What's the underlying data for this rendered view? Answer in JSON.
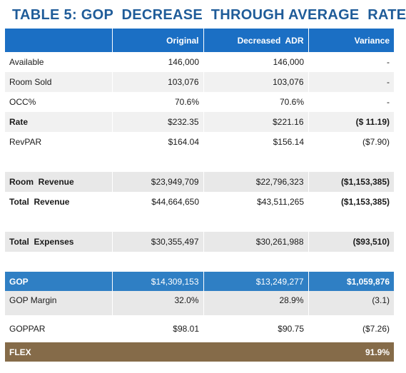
{
  "title": "TABLE 5: GOP  DECREASE  THROUGH AVERAGE  RATE",
  "columns": [
    "",
    "Original",
    "Decreased  ADR",
    "Variance"
  ],
  "rows": [
    {
      "label": "Available",
      "original": "146,000",
      "decreased": "146,000",
      "variance": "-"
    },
    {
      "label": "Room Sold",
      "original": "103,076",
      "decreased": "103,076",
      "variance": "-"
    },
    {
      "label": "OCC%",
      "original": "70.6%",
      "decreased": "70.6%",
      "variance": "-"
    },
    {
      "label": "Rate",
      "original": "$232.35",
      "decreased": "$221.16",
      "variance": "($ 11.19)"
    },
    {
      "label": "RevPAR",
      "original": "$164.04",
      "decreased": "$156.14",
      "variance": "($7.90)"
    },
    {
      "label": "Room  Revenue",
      "original": "$23,949,709",
      "decreased": "$22,796,323",
      "variance": "($1,153,385)"
    },
    {
      "label": "Total  Revenue",
      "original": "$44,664,650",
      "decreased": "$43,511,265",
      "variance": "($1,153,385)"
    },
    {
      "label": "Total  Expenses",
      "original": "$30,355,497",
      "decreased": "$30,261,988",
      "variance": "($93,510)"
    },
    {
      "label": "GOP",
      "original": "$14,309,153",
      "decreased": "$13,249,277",
      "variance": "$1,059,876"
    },
    {
      "label": "GOP Margin",
      "original": "32.0%",
      "decreased": "28.9%",
      "variance": "(3.1)"
    },
    {
      "label": "GOPPAR",
      "original": "$98.01",
      "decreased": "$90.75",
      "variance": "($7.26)"
    },
    {
      "label": "FLEX",
      "variance": "91.9%"
    }
  ],
  "colors": {
    "title": "#1f5c99",
    "header": "#1b6fc4",
    "gop": "#2f7fc4",
    "flex": "#856b49"
  }
}
